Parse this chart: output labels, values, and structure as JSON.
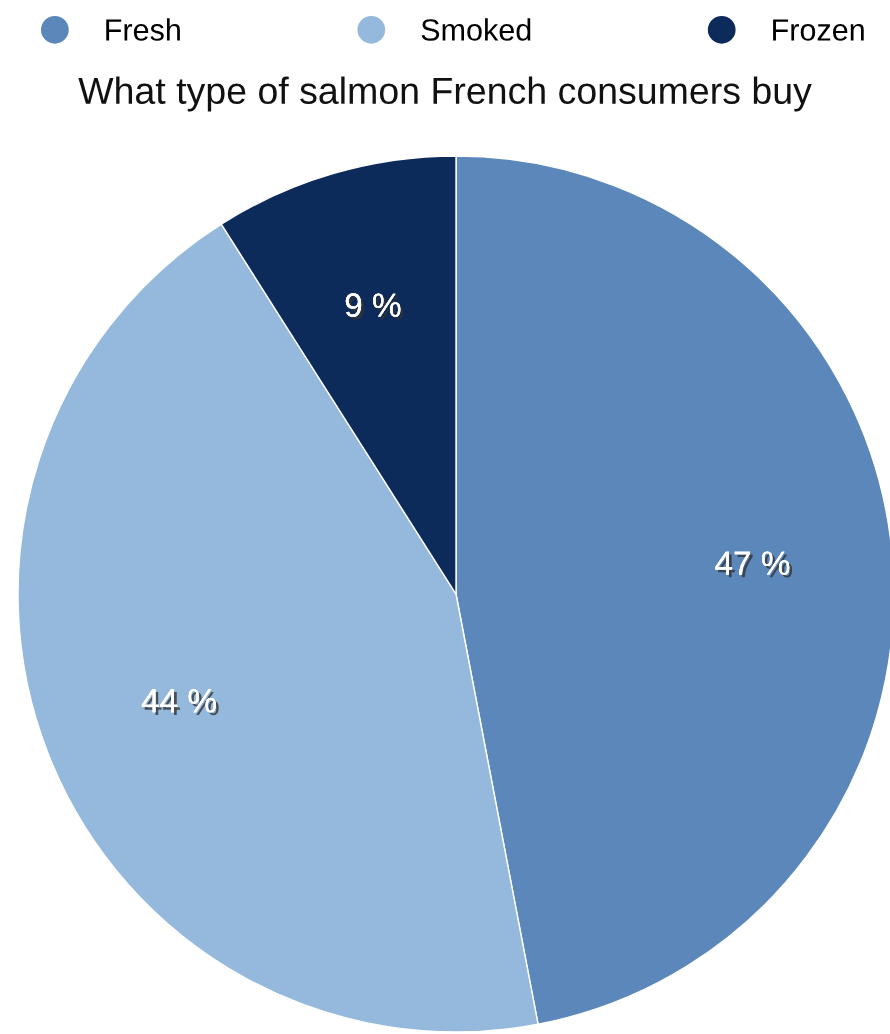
{
  "chart_data": {
    "type": "pie",
    "title": "What type of salmon French consumers buy",
    "categories": [
      "Fresh",
      "Smoked",
      "Frozen"
    ],
    "values": [
      47,
      44,
      9
    ],
    "colors": [
      "#5b87bb",
      "#94b9dc",
      "#0c2a5a"
    ],
    "value_labels": [
      "47 %",
      "44 %",
      "9 %"
    ],
    "legend": "top"
  }
}
